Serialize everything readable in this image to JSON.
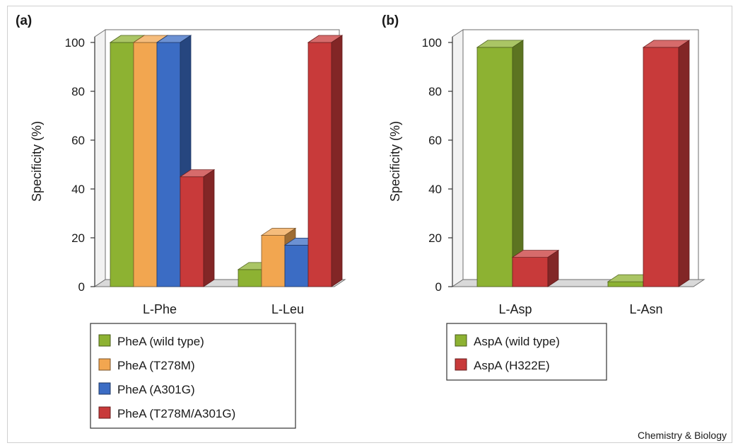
{
  "credit": "Chemistry & Biology",
  "colors": {
    "green": "#8db232",
    "orange": "#f2a650",
    "blue": "#3b6cc4",
    "red": "#c83a3a"
  },
  "chart_data": [
    {
      "type": "bar",
      "panel_label": "(a)",
      "ylabel": "Specificity  (%)",
      "ylim": [
        0,
        100
      ],
      "yticks": [
        "0",
        "20",
        "40",
        "60",
        "80",
        "100"
      ],
      "categories": [
        "L-Phe",
        "L-Leu"
      ],
      "series": [
        {
          "name": "PheA (wild type)",
          "color": "#8db232",
          "values": [
            100,
            7
          ]
        },
        {
          "name": "PheA (T278M)",
          "color": "#f2a650",
          "values": [
            100,
            21
          ]
        },
        {
          "name": "PheA (A301G)",
          "color": "#3b6cc4",
          "values": [
            100,
            17
          ]
        },
        {
          "name": "PheA (T278M/A301G)",
          "color": "#c83a3a",
          "values": [
            45,
            100
          ]
        }
      ],
      "legend_placement": "bottom"
    },
    {
      "type": "bar",
      "panel_label": "(b)",
      "ylabel": "Specificity  (%)",
      "ylim": [
        0,
        100
      ],
      "yticks": [
        "0",
        "20",
        "40",
        "60",
        "80",
        "100"
      ],
      "categories": [
        "L-Asp",
        "L-Asn"
      ],
      "series": [
        {
          "name": "AspA (wild type)",
          "color": "#8db232",
          "values": [
            98,
            2
          ]
        },
        {
          "name": "AspA (H322E)",
          "color": "#c83a3a",
          "values": [
            12,
            98
          ]
        }
      ],
      "legend_placement": "bottom"
    }
  ]
}
